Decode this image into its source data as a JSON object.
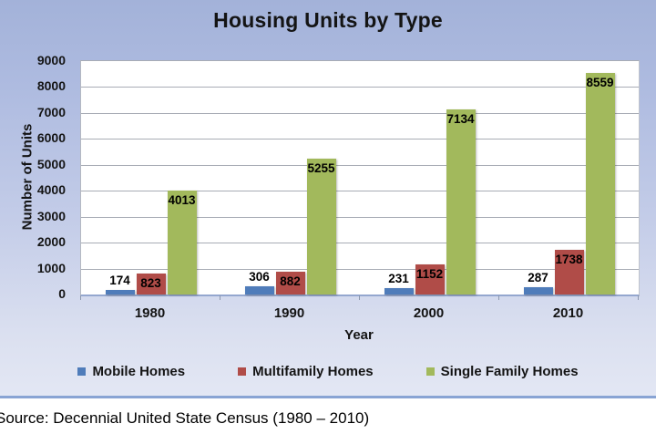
{
  "chart_data": {
    "type": "bar",
    "title": "Housing Units by Type",
    "categories": [
      "1980",
      "1990",
      "2000",
      "2010"
    ],
    "series": [
      {
        "name": "Mobile Homes",
        "color": "#4f7cba",
        "values": [
          174,
          306,
          231,
          287
        ],
        "data_label_position": "outside-end"
      },
      {
        "name": "Multifamily Homes",
        "color": "#b04c48",
        "values": [
          823,
          882,
          1152,
          1738
        ],
        "data_label_position": "inside-end"
      },
      {
        "name": "Single Family Homes",
        "color": "#a2b95c",
        "values": [
          4013,
          5255,
          7134,
          8559
        ],
        "data_label_position": "inside-end"
      }
    ],
    "xlabel": "Year",
    "ylabel": "Number of Units",
    "ylim": [
      0,
      9000
    ],
    "yticks": [
      0,
      1000,
      2000,
      3000,
      4000,
      5000,
      6000,
      7000,
      8000,
      9000
    ],
    "grid": true,
    "legend_position": "bottom"
  },
  "source_line": "Source: Decennial United State Census (1980 – 2010)"
}
